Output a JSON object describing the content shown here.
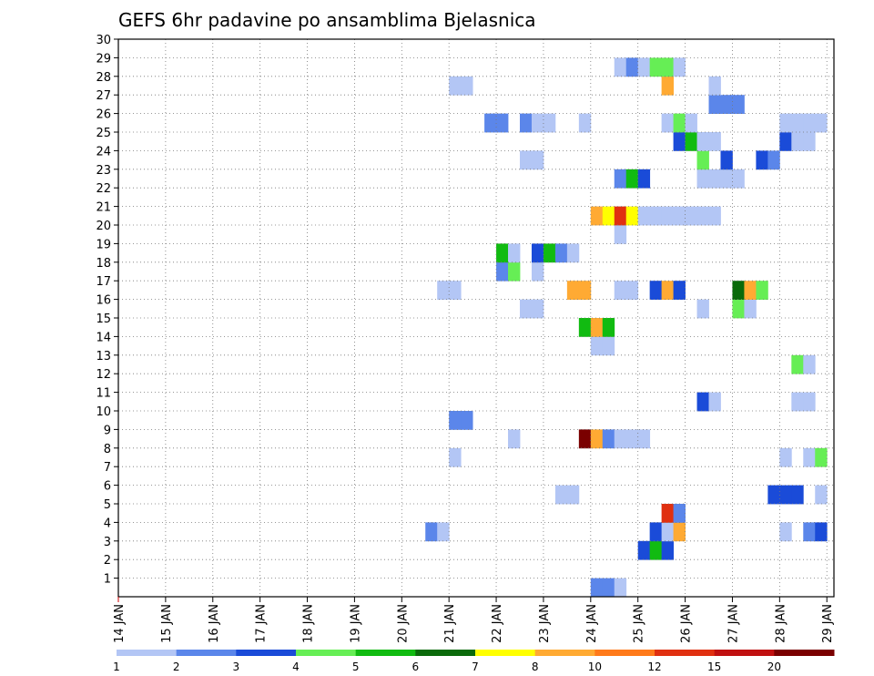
{
  "chart_data": {
    "type": "heatmap",
    "title": "GEFS 6hr padavine po ansamblima Bjelasnica",
    "y_axis": {
      "min": 0,
      "max": 30,
      "ticks": [
        1,
        2,
        3,
        4,
        5,
        6,
        7,
        8,
        9,
        10,
        11,
        12,
        13,
        14,
        15,
        16,
        17,
        18,
        19,
        20,
        21,
        22,
        23,
        24,
        25,
        26,
        27,
        28,
        29,
        30
      ]
    },
    "x_axis": {
      "start_day": 14,
      "end_day": 29,
      "tick_labels": [
        "14 JAN",
        "15 JAN",
        "16 JAN",
        "17 JAN",
        "18 JAN",
        "19 JAN",
        "20 JAN",
        "21 JAN",
        "22 JAN",
        "23 JAN",
        "24 JAN",
        "25 JAN",
        "26 JAN",
        "27 JAN",
        "28 JAN",
        "29 JAN"
      ]
    },
    "legend": {
      "colors": [
        "#b3c6f5",
        "#5b86ea",
        "#1a4bd8",
        "#66ee55",
        "#11bb11",
        "#0a6a0a",
        "#ffff00",
        "#ffaa33",
        "#ff7a1a",
        "#e03010",
        "#c01010",
        "#7a0000"
      ],
      "labels": [
        "1",
        "2",
        "3",
        "4",
        "5",
        "6",
        "7",
        "8",
        "10",
        "12",
        "15",
        "20"
      ]
    },
    "cells": [
      {
        "d": 24.0,
        "m": 0,
        "c": 2
      },
      {
        "d": 24.25,
        "m": 0,
        "c": 2
      },
      {
        "d": 24.5,
        "m": 0,
        "c": 1
      },
      {
        "d": 25.0,
        "m": 2,
        "c": 3
      },
      {
        "d": 25.25,
        "m": 2,
        "c": 5
      },
      {
        "d": 25.5,
        "m": 2,
        "c": 3
      },
      {
        "d": 20.5,
        "m": 3,
        "c": 2
      },
      {
        "d": 20.75,
        "m": 3,
        "c": 1
      },
      {
        "d": 25.25,
        "m": 3,
        "c": 3
      },
      {
        "d": 25.5,
        "m": 3,
        "c": 1
      },
      {
        "d": 25.75,
        "m": 3,
        "c": 8
      },
      {
        "d": 28.0,
        "m": 3,
        "c": 1
      },
      {
        "d": 28.5,
        "m": 3,
        "c": 2
      },
      {
        "d": 28.75,
        "m": 3,
        "c": 3
      },
      {
        "d": 25.5,
        "m": 4,
        "c": 12
      },
      {
        "d": 25.75,
        "m": 4,
        "c": 2
      },
      {
        "d": 23.25,
        "m": 5,
        "c": 1
      },
      {
        "d": 23.5,
        "m": 5,
        "c": 1
      },
      {
        "d": 27.75,
        "m": 5,
        "c": 3
      },
      {
        "d": 28.0,
        "m": 5,
        "c": 3
      },
      {
        "d": 28.25,
        "m": 5,
        "c": 3
      },
      {
        "d": 28.75,
        "m": 5,
        "c": 1
      },
      {
        "d": 21.0,
        "m": 7,
        "c": 1
      },
      {
        "d": 28.0,
        "m": 7,
        "c": 1
      },
      {
        "d": 28.5,
        "m": 7,
        "c": 1
      },
      {
        "d": 28.75,
        "m": 7,
        "c": 4
      },
      {
        "d": 22.25,
        "m": 8,
        "c": 1
      },
      {
        "d": 23.75,
        "m": 8,
        "c": 20
      },
      {
        "d": 24.0,
        "m": 8,
        "c": 8
      },
      {
        "d": 24.25,
        "m": 8,
        "c": 2
      },
      {
        "d": 24.5,
        "m": 8,
        "c": 1
      },
      {
        "d": 24.75,
        "m": 8,
        "c": 1
      },
      {
        "d": 25.0,
        "m": 8,
        "c": 1
      },
      {
        "d": 21.0,
        "m": 9,
        "c": 2
      },
      {
        "d": 21.25,
        "m": 9,
        "c": 2
      },
      {
        "d": 26.25,
        "m": 10,
        "c": 3
      },
      {
        "d": 26.5,
        "m": 10,
        "c": 1
      },
      {
        "d": 28.25,
        "m": 10,
        "c": 1
      },
      {
        "d": 28.5,
        "m": 10,
        "c": 1
      },
      {
        "d": 28.25,
        "m": 12,
        "c": 4
      },
      {
        "d": 28.5,
        "m": 12,
        "c": 1
      },
      {
        "d": 24.0,
        "m": 13,
        "c": 1
      },
      {
        "d": 24.25,
        "m": 13,
        "c": 1
      },
      {
        "d": 23.75,
        "m": 14,
        "c": 5
      },
      {
        "d": 24.0,
        "m": 14,
        "c": 8
      },
      {
        "d": 24.25,
        "m": 14,
        "c": 5
      },
      {
        "d": 22.5,
        "m": 15,
        "c": 1
      },
      {
        "d": 22.75,
        "m": 15,
        "c": 1
      },
      {
        "d": 26.25,
        "m": 15,
        "c": 1
      },
      {
        "d": 27.0,
        "m": 15,
        "c": 4
      },
      {
        "d": 27.25,
        "m": 15,
        "c": 1
      },
      {
        "d": 20.75,
        "m": 16,
        "c": 1
      },
      {
        "d": 21.0,
        "m": 16,
        "c": 1
      },
      {
        "d": 23.5,
        "m": 16,
        "c": 8
      },
      {
        "d": 23.75,
        "m": 16,
        "c": 8
      },
      {
        "d": 24.5,
        "m": 16,
        "c": 1
      },
      {
        "d": 24.75,
        "m": 16,
        "c": 1
      },
      {
        "d": 25.25,
        "m": 16,
        "c": 3
      },
      {
        "d": 25.5,
        "m": 16,
        "c": 8
      },
      {
        "d": 25.75,
        "m": 16,
        "c": 3
      },
      {
        "d": 27.0,
        "m": 16,
        "c": 6
      },
      {
        "d": 27.25,
        "m": 16,
        "c": 8
      },
      {
        "d": 27.5,
        "m": 16,
        "c": 4
      },
      {
        "d": 22.0,
        "m": 17,
        "c": 2
      },
      {
        "d": 22.25,
        "m": 17,
        "c": 4
      },
      {
        "d": 22.75,
        "m": 17,
        "c": 1
      },
      {
        "d": 22.0,
        "m": 18,
        "c": 5
      },
      {
        "d": 22.25,
        "m": 18,
        "c": 1
      },
      {
        "d": 22.75,
        "m": 18,
        "c": 3
      },
      {
        "d": 23.0,
        "m": 18,
        "c": 5
      },
      {
        "d": 23.25,
        "m": 18,
        "c": 2
      },
      {
        "d": 23.5,
        "m": 18,
        "c": 1
      },
      {
        "d": 24.5,
        "m": 19,
        "c": 1
      },
      {
        "d": 24.0,
        "m": 20,
        "c": 8
      },
      {
        "d": 24.25,
        "m": 20,
        "c": 7
      },
      {
        "d": 24.5,
        "m": 20,
        "c": 12
      },
      {
        "d": 24.75,
        "m": 20,
        "c": 7
      },
      {
        "d": 25.0,
        "m": 20,
        "c": 1
      },
      {
        "d": 25.25,
        "m": 20,
        "c": 1
      },
      {
        "d": 25.5,
        "m": 20,
        "c": 1
      },
      {
        "d": 25.75,
        "m": 20,
        "c": 1
      },
      {
        "d": 26.0,
        "m": 20,
        "c": 1
      },
      {
        "d": 26.25,
        "m": 20,
        "c": 1
      },
      {
        "d": 26.5,
        "m": 20,
        "c": 1
      },
      {
        "d": 24.5,
        "m": 22,
        "c": 2
      },
      {
        "d": 24.75,
        "m": 22,
        "c": 5
      },
      {
        "d": 25.0,
        "m": 22,
        "c": 3
      },
      {
        "d": 26.25,
        "m": 22,
        "c": 1
      },
      {
        "d": 26.5,
        "m": 22,
        "c": 1
      },
      {
        "d": 26.75,
        "m": 22,
        "c": 1
      },
      {
        "d": 27.0,
        "m": 22,
        "c": 1
      },
      {
        "d": 22.5,
        "m": 23,
        "c": 1
      },
      {
        "d": 22.75,
        "m": 23,
        "c": 1
      },
      {
        "d": 26.25,
        "m": 23,
        "c": 4
      },
      {
        "d": 26.75,
        "m": 23,
        "c": 3
      },
      {
        "d": 27.5,
        "m": 23,
        "c": 3
      },
      {
        "d": 27.75,
        "m": 23,
        "c": 2
      },
      {
        "d": 25.75,
        "m": 24,
        "c": 3
      },
      {
        "d": 26.0,
        "m": 24,
        "c": 5
      },
      {
        "d": 26.25,
        "m": 24,
        "c": 1
      },
      {
        "d": 26.5,
        "m": 24,
        "c": 1
      },
      {
        "d": 28.0,
        "m": 24,
        "c": 3
      },
      {
        "d": 28.25,
        "m": 24,
        "c": 1
      },
      {
        "d": 28.5,
        "m": 24,
        "c": 1
      },
      {
        "d": 21.75,
        "m": 25,
        "c": 2
      },
      {
        "d": 22.0,
        "m": 25,
        "c": 2
      },
      {
        "d": 22.5,
        "m": 25,
        "c": 2
      },
      {
        "d": 22.75,
        "m": 25,
        "c": 1
      },
      {
        "d": 23.0,
        "m": 25,
        "c": 1
      },
      {
        "d": 23.75,
        "m": 25,
        "c": 1
      },
      {
        "d": 25.5,
        "m": 25,
        "c": 1
      },
      {
        "d": 25.75,
        "m": 25,
        "c": 4
      },
      {
        "d": 26.0,
        "m": 25,
        "c": 1
      },
      {
        "d": 28.0,
        "m": 25,
        "c": 1
      },
      {
        "d": 28.25,
        "m": 25,
        "c": 1
      },
      {
        "d": 28.5,
        "m": 25,
        "c": 1
      },
      {
        "d": 28.75,
        "m": 25,
        "c": 1
      },
      {
        "d": 26.5,
        "m": 26,
        "c": 2
      },
      {
        "d": 26.75,
        "m": 26,
        "c": 2
      },
      {
        "d": 27.0,
        "m": 26,
        "c": 2
      },
      {
        "d": 21.0,
        "m": 27,
        "c": 1
      },
      {
        "d": 21.25,
        "m": 27,
        "c": 1
      },
      {
        "d": 25.5,
        "m": 27,
        "c": 8
      },
      {
        "d": 26.5,
        "m": 27,
        "c": 1
      },
      {
        "d": 24.5,
        "m": 28,
        "c": 1
      },
      {
        "d": 24.75,
        "m": 28,
        "c": 2
      },
      {
        "d": 25.0,
        "m": 28,
        "c": 1
      },
      {
        "d": 25.25,
        "m": 28,
        "c": 4
      },
      {
        "d": 25.5,
        "m": 28,
        "c": 4
      },
      {
        "d": 25.75,
        "m": 28,
        "c": 1
      }
    ]
  }
}
